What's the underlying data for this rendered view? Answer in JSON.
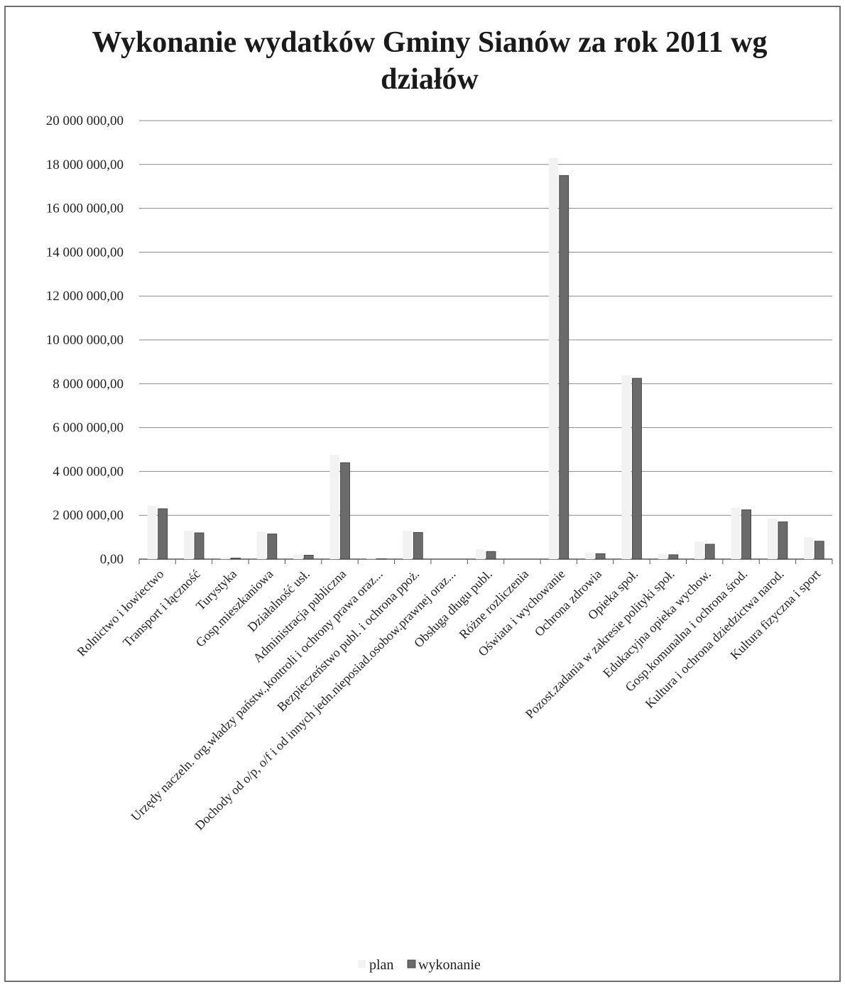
{
  "chart_data": {
    "type": "bar",
    "title": "Wykonanie wydatków Gminy Sianów za rok 2011 wg działów",
    "xlabel": "",
    "ylabel": "",
    "ylim": [
      0,
      20000000
    ],
    "yticks": [
      0,
      2000000,
      4000000,
      6000000,
      8000000,
      10000000,
      12000000,
      14000000,
      16000000,
      18000000,
      20000000
    ],
    "ytick_labels": [
      "0,00",
      "2 000 000,00",
      "4 000 000,00",
      "6 000 000,00",
      "8 000 000,00",
      "10 000 000,00",
      "12 000 000,00",
      "14 000 000,00",
      "16 000 000,00",
      "18 000 000,00",
      "20 000 000,00"
    ],
    "grid": true,
    "legend_position": "bottom",
    "categories": [
      "Rolnictwo i łowiectwo",
      "Transport i łączność",
      "Turystyka",
      "Gosp.mieszkaniowa",
      "Działalność usł.",
      "Administracja publiczna",
      "Urzędy naczeln. org.władzy państw.,kontroli i ochrony prawa oraz...",
      "Bezpieczeństwo publ. i ochrona ppoż.",
      "Dochody od o/p, o/f i od innych jedn.nieposiad.osobow.prawnej oraz...",
      "Obsługa długu publ.",
      "Różne rozliczenia",
      "Oświata i wychowanie",
      "Ochrona zdrowia",
      "Opieka społ.",
      "Pozost.zadania w zakresie polityki społ.",
      "Edukacyjna opieka wychow.",
      "Gosp.komunalna i ochrona środ.",
      "Kultura i ochrona dziedzictwa narod.",
      "Kultura fizyczna i sport"
    ],
    "series": [
      {
        "name": "plan",
        "color": "#f2f2f2",
        "values": [
          2450000,
          1300000,
          60000,
          1250000,
          220000,
          4750000,
          20000,
          1300000,
          0,
          450000,
          0,
          18300000,
          300000,
          8400000,
          250000,
          800000,
          2350000,
          1850000,
          1000000
        ]
      },
      {
        "name": "wykonanie",
        "color": "#6b6b6b",
        "values": [
          2300000,
          1200000,
          50000,
          1150000,
          180000,
          4400000,
          15000,
          1220000,
          0,
          350000,
          0,
          17500000,
          250000,
          8250000,
          200000,
          680000,
          2250000,
          1700000,
          820000
        ]
      }
    ]
  }
}
